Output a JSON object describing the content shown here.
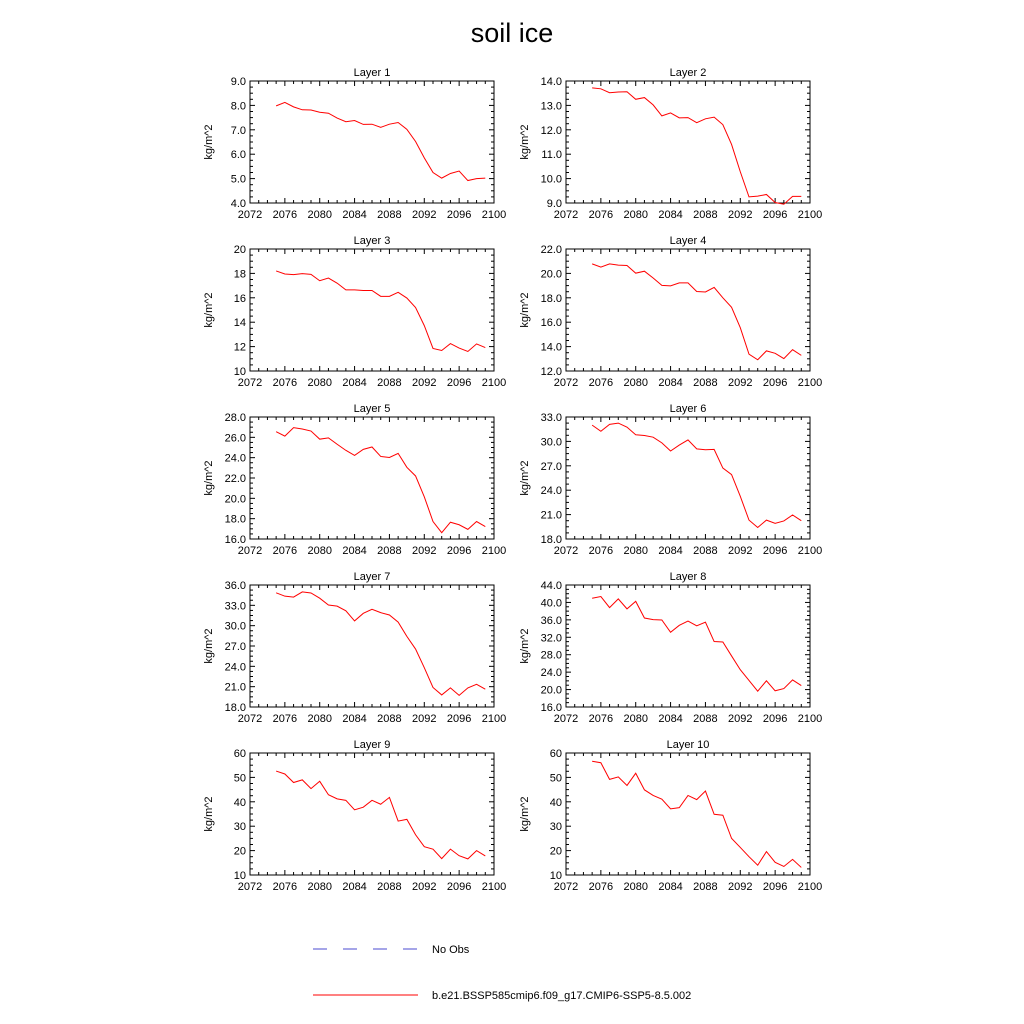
{
  "figure": {
    "title": "soil ice",
    "legend": [
      {
        "label": "No Obs",
        "color": "#4b4bd2",
        "style": "dashed"
      },
      {
        "label": "b.e21.BSSP585cmip6.f09_g17.CMIP6-SSP5-8.5.002",
        "color": "#ff0000",
        "style": "solid"
      }
    ]
  },
  "chart_data": [
    {
      "type": "line",
      "title": "Layer 1",
      "xlabel": "",
      "ylabel": "kg/m^2",
      "xlim": [
        2072,
        2100
      ],
      "ylim": [
        4.0,
        9.0
      ],
      "xticks": [
        "2072",
        "2076",
        "2080",
        "2084",
        "2088",
        "2092",
        "2096",
        "2100"
      ],
      "yticks": [
        "4.0",
        "5.0",
        "6.0",
        "7.0",
        "8.0",
        "9.0"
      ],
      "x": [
        2075,
        2076,
        2077,
        2078,
        2079,
        2080,
        2081,
        2082,
        2083,
        2084,
        2085,
        2086,
        2087,
        2088,
        2089,
        2090,
        2091,
        2092,
        2093,
        2094,
        2095,
        2096,
        2097,
        2098,
        2099
      ],
      "series": [
        {
          "name": "b.e21.BSSP585cmip6.f09_g17.CMIP6-SSP5-8.5.002",
          "color": "#ff0000",
          "values": [
            7.98,
            8.12,
            7.94,
            7.82,
            7.81,
            7.72,
            7.68,
            7.48,
            7.33,
            7.38,
            7.22,
            7.23,
            7.1,
            7.23,
            7.3,
            7.02,
            6.52,
            5.85,
            5.25,
            5.02,
            5.21,
            5.31,
            4.92,
            5.0,
            5.02
          ]
        }
      ]
    },
    {
      "type": "line",
      "title": "Layer 2",
      "xlabel": "",
      "ylabel": "kg/m^2",
      "xlim": [
        2072,
        2100
      ],
      "ylim": [
        9.0,
        14.0
      ],
      "xticks": [
        "2072",
        "2076",
        "2080",
        "2084",
        "2088",
        "2092",
        "2096",
        "2100"
      ],
      "yticks": [
        "9.0",
        "10.0",
        "11.0",
        "12.0",
        "13.0",
        "14.0"
      ],
      "x": [
        2075,
        2076,
        2077,
        2078,
        2079,
        2080,
        2081,
        2082,
        2083,
        2084,
        2085,
        2086,
        2087,
        2088,
        2089,
        2090,
        2091,
        2092,
        2093,
        2094,
        2095,
        2096,
        2097,
        2098,
        2099
      ],
      "series": [
        {
          "name": "b.e21.BSSP585cmip6.f09_g17.CMIP6-SSP5-8.5.002",
          "color": "#ff0000",
          "values": [
            13.72,
            13.68,
            13.52,
            13.55,
            13.56,
            13.25,
            13.32,
            13.02,
            12.57,
            12.69,
            12.49,
            12.5,
            12.29,
            12.45,
            12.52,
            12.21,
            11.4,
            10.28,
            9.25,
            9.28,
            9.35,
            9.02,
            8.95,
            9.27,
            9.27
          ]
        }
      ]
    },
    {
      "type": "line",
      "title": "Layer 3",
      "xlabel": "",
      "ylabel": "kg/m^2",
      "xlim": [
        2072,
        2100
      ],
      "ylim": [
        10,
        20
      ],
      "xticks": [
        "2072",
        "2076",
        "2080",
        "2084",
        "2088",
        "2092",
        "2096",
        "2100"
      ],
      "yticks": [
        "10",
        "12",
        "14",
        "16",
        "18",
        "20"
      ],
      "x": [
        2075,
        2076,
        2077,
        2078,
        2079,
        2080,
        2081,
        2082,
        2083,
        2084,
        2085,
        2086,
        2087,
        2088,
        2089,
        2090,
        2091,
        2092,
        2093,
        2094,
        2095,
        2096,
        2097,
        2098,
        2099
      ],
      "series": [
        {
          "name": "b.e21.BSSP585cmip6.f09_g17.CMIP6-SSP5-8.5.002",
          "color": "#ff0000",
          "values": [
            18.2,
            17.95,
            17.9,
            17.98,
            17.92,
            17.4,
            17.62,
            17.2,
            16.65,
            16.65,
            16.6,
            16.6,
            16.12,
            16.12,
            16.45,
            15.98,
            15.2,
            13.72,
            11.85,
            11.68,
            12.25,
            11.88,
            11.6,
            12.22,
            11.92
          ]
        }
      ]
    },
    {
      "type": "line",
      "title": "Layer 4",
      "xlabel": "",
      "ylabel": "kg/m^2",
      "xlim": [
        2072,
        2100
      ],
      "ylim": [
        12.0,
        22.0
      ],
      "xticks": [
        "2072",
        "2076",
        "2080",
        "2084",
        "2088",
        "2092",
        "2096",
        "2100"
      ],
      "yticks": [
        "12.0",
        "14.0",
        "16.0",
        "18.0",
        "20.0",
        "22.0"
      ],
      "x": [
        2075,
        2076,
        2077,
        2078,
        2079,
        2080,
        2081,
        2082,
        2083,
        2084,
        2085,
        2086,
        2087,
        2088,
        2089,
        2090,
        2091,
        2092,
        2093,
        2094,
        2095,
        2096,
        2097,
        2098,
        2099
      ],
      "series": [
        {
          "name": "b.e21.BSSP585cmip6.f09_g17.CMIP6-SSP5-8.5.002",
          "color": "#ff0000",
          "values": [
            20.78,
            20.52,
            20.78,
            20.68,
            20.65,
            20.02,
            20.18,
            19.62,
            19.02,
            18.98,
            19.22,
            19.22,
            18.52,
            18.48,
            18.85,
            18.0,
            17.22,
            15.55,
            13.38,
            12.92,
            13.65,
            13.45,
            13.02,
            13.75,
            13.28
          ]
        }
      ]
    },
    {
      "type": "line",
      "title": "Layer 5",
      "xlabel": "",
      "ylabel": "kg/m^2",
      "xlim": [
        2072,
        2100
      ],
      "ylim": [
        16.0,
        28.0
      ],
      "xticks": [
        "2072",
        "2076",
        "2080",
        "2084",
        "2088",
        "2092",
        "2096",
        "2100"
      ],
      "yticks": [
        "16.0",
        "18.0",
        "20.0",
        "22.0",
        "24.0",
        "26.0",
        "28.0"
      ],
      "x": [
        2075,
        2076,
        2077,
        2078,
        2079,
        2080,
        2081,
        2082,
        2083,
        2084,
        2085,
        2086,
        2087,
        2088,
        2089,
        2090,
        2091,
        2092,
        2093,
        2094,
        2095,
        2096,
        2097,
        2098,
        2099
      ],
      "series": [
        {
          "name": "b.e21.BSSP585cmip6.f09_g17.CMIP6-SSP5-8.5.002",
          "color": "#ff0000",
          "values": [
            26.55,
            26.12,
            26.95,
            26.82,
            26.62,
            25.82,
            25.95,
            25.32,
            24.72,
            24.22,
            24.82,
            25.05,
            24.12,
            24.02,
            24.42,
            23.05,
            22.2,
            20.15,
            17.72,
            16.62,
            17.65,
            17.4,
            16.95,
            17.72,
            17.22
          ]
        }
      ]
    },
    {
      "type": "line",
      "title": "Layer 6",
      "xlabel": "",
      "ylabel": "kg/m^2",
      "xlim": [
        2072,
        2100
      ],
      "ylim": [
        18.0,
        33.0
      ],
      "xticks": [
        "2072",
        "2076",
        "2080",
        "2084",
        "2088",
        "2092",
        "2096",
        "2100"
      ],
      "yticks": [
        "18.0",
        "21.0",
        "24.0",
        "27.0",
        "30.0",
        "33.0"
      ],
      "x": [
        2075,
        2076,
        2077,
        2078,
        2079,
        2080,
        2081,
        2082,
        2083,
        2084,
        2085,
        2086,
        2087,
        2088,
        2089,
        2090,
        2091,
        2092,
        2093,
        2094,
        2095,
        2096,
        2097,
        2098,
        2099
      ],
      "series": [
        {
          "name": "b.e21.BSSP585cmip6.f09_g17.CMIP6-SSP5-8.5.002",
          "color": "#ff0000",
          "values": [
            32.0,
            31.25,
            32.1,
            32.25,
            31.75,
            30.82,
            30.72,
            30.52,
            29.82,
            28.82,
            29.55,
            30.18,
            29.08,
            28.98,
            29.02,
            26.72,
            25.92,
            23.25,
            20.32,
            19.42,
            20.32,
            19.92,
            20.22,
            20.95,
            20.25
          ]
        }
      ]
    },
    {
      "type": "line",
      "title": "Layer 7",
      "xlabel": "",
      "ylabel": "kg/m^2",
      "xlim": [
        2072,
        2100
      ],
      "ylim": [
        18.0,
        36.0
      ],
      "xticks": [
        "2072",
        "2076",
        "2080",
        "2084",
        "2088",
        "2092",
        "2096",
        "2100"
      ],
      "yticks": [
        "18.0",
        "21.0",
        "24.0",
        "27.0",
        "30.0",
        "33.0",
        "36.0"
      ],
      "x": [
        2075,
        2076,
        2077,
        2078,
        2079,
        2080,
        2081,
        2082,
        2083,
        2084,
        2085,
        2086,
        2087,
        2088,
        2089,
        2090,
        2091,
        2092,
        2093,
        2094,
        2095,
        2096,
        2097,
        2098,
        2099
      ],
      "series": [
        {
          "name": "b.e21.BSSP585cmip6.f09_g17.CMIP6-SSP5-8.5.002",
          "color": "#ff0000",
          "values": [
            34.85,
            34.35,
            34.22,
            34.98,
            34.82,
            34.05,
            33.05,
            32.88,
            32.2,
            30.7,
            31.82,
            32.42,
            31.92,
            31.58,
            30.52,
            28.42,
            26.55,
            23.8,
            20.88,
            19.78,
            20.82,
            19.72,
            20.82,
            21.35,
            20.62
          ]
        }
      ]
    },
    {
      "type": "line",
      "title": "Layer 8",
      "xlabel": "",
      "ylabel": "kg/m^2",
      "xlim": [
        2072,
        2100
      ],
      "ylim": [
        16.0,
        44.0
      ],
      "xticks": [
        "2072",
        "2076",
        "2080",
        "2084",
        "2088",
        "2092",
        "2096",
        "2100"
      ],
      "yticks": [
        "16.0",
        "20.0",
        "24.0",
        "28.0",
        "32.0",
        "36.0",
        "40.0",
        "44.0"
      ],
      "x": [
        2075,
        2076,
        2077,
        2078,
        2079,
        2080,
        2081,
        2082,
        2083,
        2084,
        2085,
        2086,
        2087,
        2088,
        2089,
        2090,
        2091,
        2092,
        2093,
        2094,
        2095,
        2096,
        2097,
        2098,
        2099
      ],
      "series": [
        {
          "name": "b.e21.BSSP585cmip6.f09_g17.CMIP6-SSP5-8.5.002",
          "color": "#ff0000",
          "values": [
            40.95,
            41.35,
            38.82,
            40.82,
            38.52,
            40.25,
            36.42,
            36.05,
            35.98,
            33.15,
            34.75,
            35.72,
            34.62,
            35.48,
            31.02,
            30.92,
            27.72,
            24.55,
            22.1,
            19.62,
            22.02,
            19.72,
            20.22,
            22.22,
            20.92
          ]
        }
      ]
    },
    {
      "type": "line",
      "title": "Layer 9",
      "xlabel": "",
      "ylabel": "kg/m^2",
      "xlim": [
        2072,
        2100
      ],
      "ylim": [
        10,
        60
      ],
      "xticks": [
        "2072",
        "2076",
        "2080",
        "2084",
        "2088",
        "2092",
        "2096",
        "2100"
      ],
      "yticks": [
        "10",
        "20",
        "30",
        "40",
        "50",
        "60"
      ],
      "x": [
        2075,
        2076,
        2077,
        2078,
        2079,
        2080,
        2081,
        2082,
        2083,
        2084,
        2085,
        2086,
        2087,
        2088,
        2089,
        2090,
        2091,
        2092,
        2093,
        2094,
        2095,
        2096,
        2097,
        2098,
        2099
      ],
      "series": [
        {
          "name": "b.e21.BSSP585cmip6.f09_g17.CMIP6-SSP5-8.5.002",
          "color": "#ff0000",
          "values": [
            52.6,
            51.4,
            47.9,
            49.0,
            45.4,
            48.4,
            42.9,
            41.2,
            40.6,
            36.7,
            37.8,
            40.6,
            39.0,
            41.8,
            32.1,
            32.8,
            26.5,
            21.6,
            20.6,
            16.7,
            20.6,
            17.9,
            16.6,
            20.0,
            17.8
          ]
        }
      ]
    },
    {
      "type": "line",
      "title": "Layer 10",
      "xlabel": "",
      "ylabel": "kg/m^2",
      "xlim": [
        2072,
        2100
      ],
      "ylim": [
        10,
        60
      ],
      "xticks": [
        "2072",
        "2076",
        "2080",
        "2084",
        "2088",
        "2092",
        "2096",
        "2100"
      ],
      "yticks": [
        "10",
        "20",
        "30",
        "40",
        "50",
        "60"
      ],
      "x": [
        2075,
        2076,
        2077,
        2078,
        2079,
        2080,
        2081,
        2082,
        2083,
        2084,
        2085,
        2086,
        2087,
        2088,
        2089,
        2090,
        2091,
        2092,
        2093,
        2094,
        2095,
        2096,
        2097,
        2098,
        2099
      ],
      "series": [
        {
          "name": "b.e21.BSSP585cmip6.f09_g17.CMIP6-SSP5-8.5.002",
          "color": "#ff0000",
          "values": [
            56.6,
            56.0,
            49.2,
            50.2,
            46.7,
            51.7,
            44.9,
            42.6,
            41.1,
            37.1,
            37.6,
            42.6,
            40.9,
            44.4,
            34.9,
            34.5,
            25.0,
            21.3,
            17.5,
            14.0,
            19.6,
            15.2,
            13.5,
            16.4,
            13.1
          ]
        }
      ]
    }
  ]
}
